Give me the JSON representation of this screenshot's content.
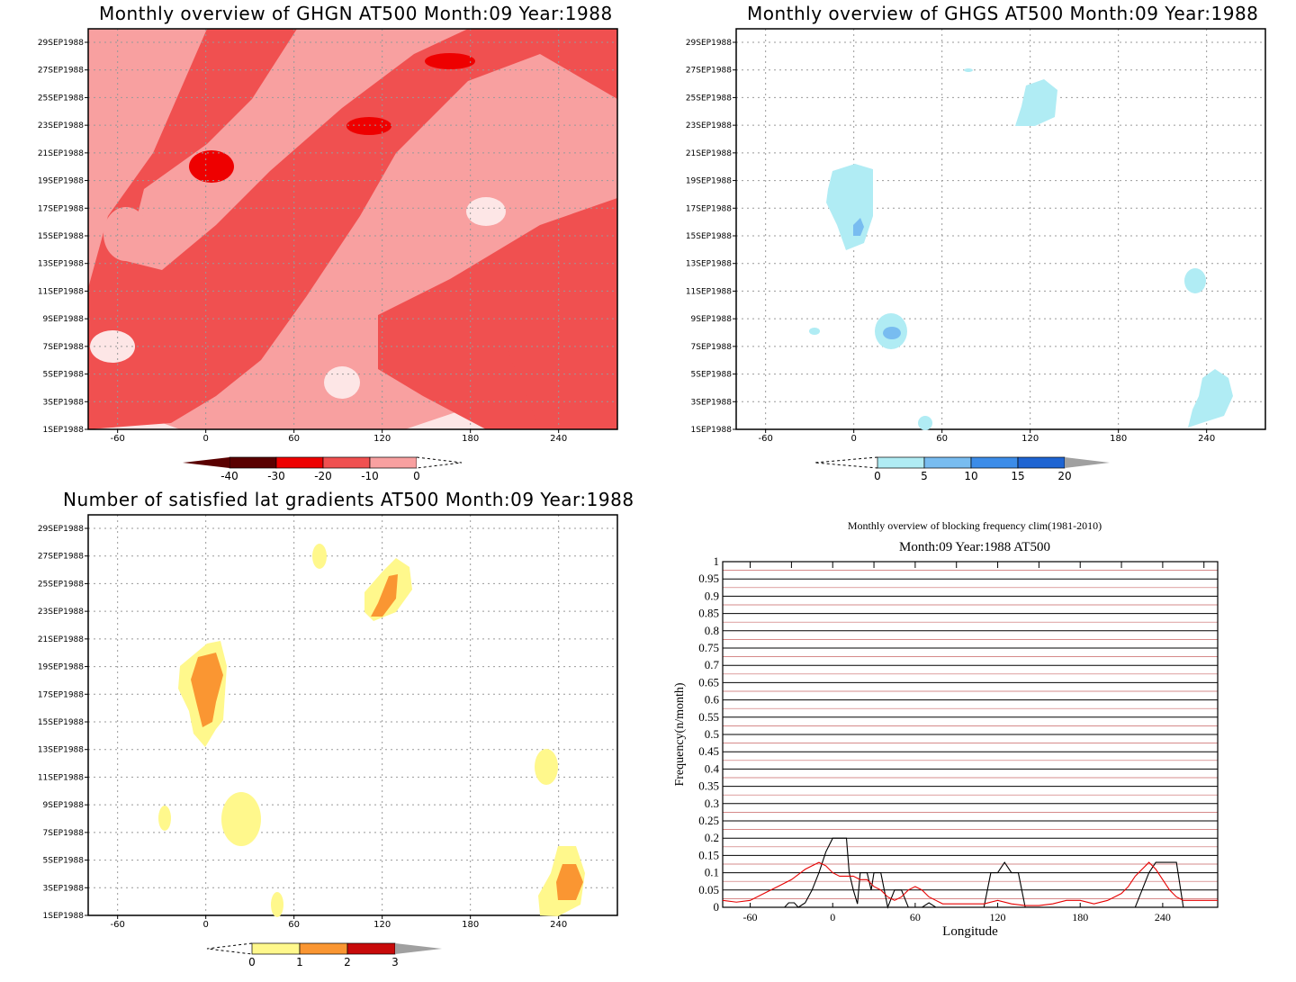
{
  "chart_data": [
    {
      "id": "ghgn",
      "type": "heatmap",
      "title": "Monthly overview of GHGN AT500 Month:09 Year:1988",
      "x_ticks": [
        -60,
        0,
        60,
        120,
        180,
        240
      ],
      "x_labels": [
        "-60",
        "0",
        "60",
        "120",
        "180",
        "240"
      ],
      "xlim": [
        -80,
        280
      ],
      "y_labels": [
        "1SEP1988",
        "3SEP1988",
        "5SEP1988",
        "7SEP1988",
        "9SEP1988",
        "11SEP1988",
        "13SEP1988",
        "15SEP1988",
        "17SEP1988",
        "19SEP1988",
        "21SEP1988",
        "23SEP1988",
        "25SEP1988",
        "27SEP1988",
        "29SEP1988"
      ],
      "grid": true,
      "colorbar": {
        "levels": [
          "-40",
          "-30",
          "-20",
          "-10",
          "0"
        ],
        "colors": [
          "#5a0000",
          "#ee0000",
          "#f05050",
          "#f8a0a0",
          "#fde6e6"
        ]
      },
      "background_color": "#fde6e6",
      "regions": [
        {
          "value_band": "-10..0",
          "color": "#f8a0a0",
          "description": "widespread light negative"
        },
        {
          "value_band": "-20..-10",
          "color": "#f05050",
          "description": "diagonal bands"
        },
        {
          "value_band": "-30..-20",
          "color": "#ee0000",
          "description": "small cores near 0E 21SEP and 120E 23SEP"
        }
      ]
    },
    {
      "id": "ghgs",
      "type": "heatmap",
      "title": "Monthly overview of GHGS AT500 Month:09 Year:1988",
      "x_ticks": [
        -60,
        0,
        60,
        120,
        180,
        240
      ],
      "x_labels": [
        "-60",
        "0",
        "60",
        "120",
        "180",
        "240"
      ],
      "xlim": [
        -80,
        280
      ],
      "y_labels": [
        "1SEP1988",
        "3SEP1988",
        "5SEP1988",
        "7SEP1988",
        "9SEP1988",
        "11SEP1988",
        "13SEP1988",
        "15SEP1988",
        "17SEP1988",
        "19SEP1988",
        "21SEP1988",
        "23SEP1988",
        "25SEP1988",
        "27SEP1988",
        "29SEP1988"
      ],
      "grid": true,
      "colorbar": {
        "levels": [
          "0",
          "5",
          "10",
          "15",
          "20"
        ],
        "colors": [
          "#b0ecf4",
          "#78bcf0",
          "#3c8ce8",
          "#1e64d2",
          "#a0a0a0"
        ]
      }
    },
    {
      "id": "lat",
      "type": "heatmap",
      "title": "Number of satisfied lat gradients AT500 Month:09 Year:1988",
      "x_ticks": [
        -60,
        0,
        60,
        120,
        180,
        240
      ],
      "x_labels": [
        "-60",
        "0",
        "60",
        "120",
        "180",
        "240"
      ],
      "xlim": [
        -80,
        280
      ],
      "y_labels": [
        "1SEP1988",
        "3SEP1988",
        "5SEP1988",
        "7SEP1988",
        "9SEP1988",
        "11SEP1988",
        "13SEP1988",
        "15SEP1988",
        "17SEP1988",
        "19SEP1988",
        "21SEP1988",
        "23SEP1988",
        "25SEP1988",
        "27SEP1988",
        "29SEP1988"
      ],
      "grid": true,
      "colorbar": {
        "levels": [
          "0",
          "1",
          "2",
          "3"
        ],
        "colors": [
          "#fff88c",
          "#fa9632",
          "#c80a0a",
          "#a0a0a0"
        ]
      }
    },
    {
      "id": "freq",
      "type": "line",
      "title": "Monthly overview of blocking frequency clim(1981-2010)",
      "subtitle": "Month:09 Year:1988  AT500",
      "xlabel": "Longitude",
      "ylabel": "Frequency(n/month)",
      "xlim": [
        -80,
        280
      ],
      "ylim": [
        0,
        1
      ],
      "x_ticks": [
        -60,
        0,
        60,
        120,
        180,
        240
      ],
      "x_labels": [
        "-60",
        "0",
        "60",
        "120",
        "180",
        "240"
      ],
      "y_ticks": [
        0,
        0.05,
        0.1,
        0.15,
        0.2,
        0.25,
        0.3,
        0.35,
        0.4,
        0.45,
        0.5,
        0.55,
        0.6,
        0.65,
        0.7,
        0.75,
        0.8,
        0.85,
        0.9,
        0.95,
        1
      ],
      "y_labels": [
        "0",
        "0.05",
        "0.1",
        "0.15",
        "0.2",
        "0.25",
        "0.3",
        "0.35",
        "0.4",
        "0.45",
        "0.5",
        "0.55",
        "0.6",
        "0.65",
        "0.7",
        "0.75",
        "0.8",
        "0.85",
        "0.9",
        "0.95",
        "1"
      ],
      "series": [
        {
          "color": "#000000",
          "x": [
            -80,
            -35,
            -32,
            -28,
            -25,
            -20,
            -15,
            -10,
            -5,
            0,
            5,
            10,
            12,
            15,
            18,
            20,
            25,
            28,
            30,
            35,
            40,
            45,
            50,
            55,
            60,
            65,
            70,
            75,
            80,
            85,
            90,
            100,
            110,
            115,
            120,
            125,
            130,
            135,
            140,
            145,
            150,
            160,
            170,
            180,
            190,
            200,
            210,
            215,
            220,
            225,
            230,
            235,
            240,
            245,
            250,
            255,
            260,
            270,
            280
          ],
          "y": [
            0,
            0,
            0.013,
            0.013,
            0,
            0.013,
            0.05,
            0.1,
            0.16,
            0.2,
            0.2,
            0.2,
            0.1,
            0.05,
            0.01,
            0.1,
            0.1,
            0.05,
            0.1,
            0.1,
            0,
            0.05,
            0.05,
            0,
            0,
            0,
            0.013,
            0,
            0,
            0,
            0,
            0,
            0,
            0.1,
            0.1,
            0.13,
            0.1,
            0.1,
            0,
            0,
            0,
            0,
            0,
            0,
            0,
            0,
            0,
            0,
            0,
            0.05,
            0.1,
            0.13,
            0.13,
            0.13,
            0.13,
            0,
            0,
            0,
            0
          ]
        },
        {
          "color": "#e60000",
          "x": [
            -80,
            -70,
            -60,
            -50,
            -40,
            -30,
            -20,
            -15,
            -10,
            -5,
            0,
            5,
            10,
            15,
            20,
            25,
            30,
            35,
            40,
            45,
            50,
            55,
            60,
            65,
            70,
            75,
            80,
            90,
            100,
            110,
            120,
            130,
            140,
            150,
            160,
            170,
            180,
            190,
            200,
            210,
            215,
            220,
            225,
            230,
            235,
            240,
            245,
            250,
            255,
            260,
            270,
            280
          ],
          "y": [
            0.02,
            0.015,
            0.02,
            0.04,
            0.06,
            0.08,
            0.11,
            0.12,
            0.13,
            0.12,
            0.1,
            0.09,
            0.09,
            0.09,
            0.08,
            0.08,
            0.06,
            0.05,
            0.03,
            0.02,
            0.03,
            0.05,
            0.06,
            0.05,
            0.03,
            0.02,
            0.01,
            0.01,
            0.01,
            0.01,
            0.02,
            0.01,
            0.005,
            0.005,
            0.01,
            0.02,
            0.02,
            0.01,
            0.02,
            0.04,
            0.06,
            0.09,
            0.11,
            0.13,
            0.11,
            0.08,
            0.05,
            0.03,
            0.02,
            0.02,
            0.02,
            0.02
          ]
        }
      ],
      "grid": true
    }
  ]
}
